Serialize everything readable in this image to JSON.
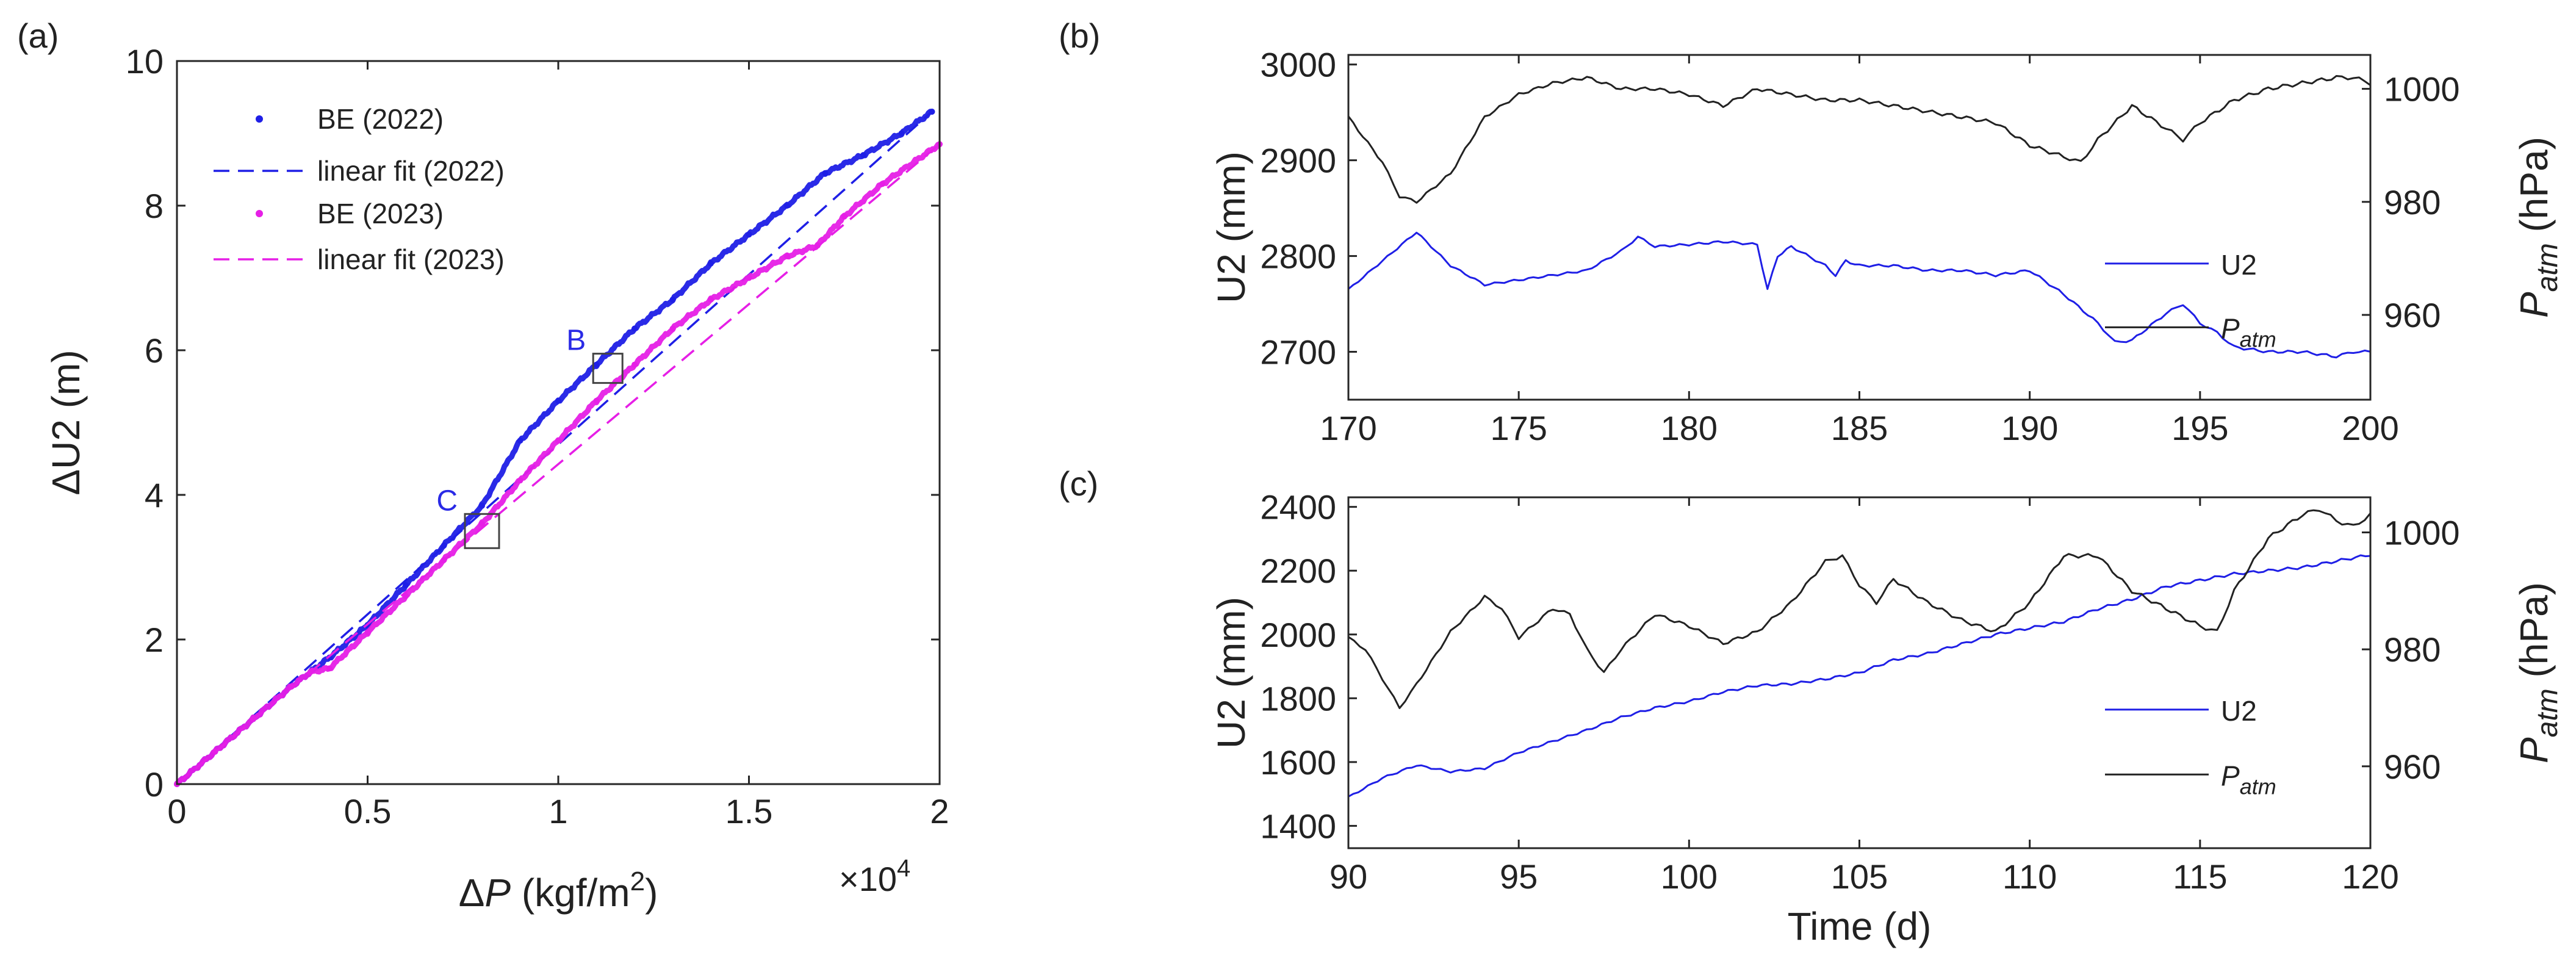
{
  "chart_data": [
    {
      "panel": "(a)",
      "type": "scatter",
      "xlabel_sym": "ΔP",
      "xlabel_unit": "(kgf/m",
      "xlabel_sup": "2",
      "xlabel_close": ")",
      "ylabel": "ΔU2 (m)",
      "xlim": [
        0,
        20000
      ],
      "ylim": [
        0,
        10
      ],
      "xticks": [
        0,
        5000,
        10000,
        15000,
        20000
      ],
      "xtick_labels": [
        "0",
        "0.5",
        "1",
        "1.5",
        "2"
      ],
      "yticks": [
        0,
        2,
        4,
        6,
        8,
        10
      ],
      "ytick_labels": [
        "0",
        "2",
        "4",
        "6",
        "8",
        "10"
      ],
      "exponent_label": "×10",
      "exponent_sup": "4",
      "legend_position": "top-left",
      "series": [
        {
          "name": "BE (2022)",
          "style": "dots",
          "color": "#1f1fe6",
          "x": [
            0,
            1000,
            2000,
            3000,
            4000,
            5000,
            6000,
            7000,
            8000,
            9000,
            10000,
            11000,
            12000,
            13000,
            14000,
            15000,
            16000,
            17000,
            18000,
            19000,
            19800
          ],
          "y": [
            0,
            0.45,
            0.9,
            1.35,
            1.75,
            2.2,
            2.75,
            3.3,
            3.85,
            4.75,
            5.3,
            5.8,
            6.3,
            6.7,
            7.2,
            7.6,
            8.0,
            8.45,
            8.7,
            9.0,
            9.3
          ]
        },
        {
          "name": "linear fit (2022)",
          "style": "dashed",
          "color": "#1f1fe6",
          "x": [
            0,
            19800
          ],
          "y": [
            0,
            9.3
          ]
        },
        {
          "name": "BE (2023)",
          "style": "dots",
          "color": "#e61fe6",
          "x": [
            0,
            1000,
            2000,
            3000,
            3500,
            4000,
            5000,
            6000,
            7000,
            8000,
            9000,
            10000,
            11000,
            12000,
            13000,
            14000,
            15000,
            16000,
            16800,
            17500,
            18500,
            20000
          ],
          "y": [
            0,
            0.45,
            0.9,
            1.35,
            1.55,
            1.6,
            2.1,
            2.6,
            3.1,
            3.6,
            4.2,
            4.75,
            5.3,
            5.8,
            6.3,
            6.7,
            7.0,
            7.3,
            7.45,
            7.85,
            8.3,
            8.85
          ]
        },
        {
          "name": "linear fit (2023)",
          "style": "dashed",
          "color": "#e61fe6",
          "x": [
            0,
            20000
          ],
          "y": [
            0,
            8.85
          ]
        }
      ],
      "annotations": [
        {
          "label": "B",
          "x": 11300,
          "y": 5.75
        },
        {
          "label": "C",
          "x": 8000,
          "y": 3.5
        }
      ]
    },
    {
      "panel": "(b)",
      "type": "line",
      "xlabel": "",
      "ylabel_left": "U2 (mm)",
      "ylabel_right_sym": "P",
      "ylabel_right_sub": "atm",
      "ylabel_right_unit": "(hPa)",
      "xlim": [
        170,
        200
      ],
      "ylim_left": [
        2650,
        3010
      ],
      "ylim_right": [
        945,
        1006
      ],
      "xticks": [
        170,
        175,
        180,
        185,
        190,
        195,
        200
      ],
      "xtick_labels": [
        "170",
        "175",
        "180",
        "185",
        "190",
        "195",
        "200"
      ],
      "yticks_left": [
        2700,
        2800,
        2900,
        3000
      ],
      "ytick_labels_left": [
        "2700",
        "2800",
        "2900",
        "3000"
      ],
      "yticks_right": [
        960,
        980,
        1000
      ],
      "ytick_labels_right": [
        "960",
        "980",
        "1000"
      ],
      "legend_position": "right",
      "series": [
        {
          "name": "U2",
          "axis": "left",
          "color": "#1f1fe6",
          "x": [
            170,
            171,
            172,
            173,
            174,
            175,
            176,
            177,
            178,
            178.5,
            179,
            180,
            181,
            182,
            182.3,
            182.6,
            183,
            184,
            184.3,
            184.6,
            185,
            186,
            187,
            188,
            189,
            190,
            191,
            192,
            192.5,
            193,
            194,
            194.5,
            195,
            195.5,
            196,
            197,
            198,
            199,
            199.5,
            200
          ],
          "y": [
            2765,
            2795,
            2825,
            2790,
            2770,
            2775,
            2780,
            2785,
            2805,
            2820,
            2810,
            2812,
            2815,
            2812,
            2765,
            2800,
            2810,
            2790,
            2780,
            2795,
            2790,
            2790,
            2785,
            2785,
            2780,
            2785,
            2760,
            2730,
            2710,
            2712,
            2740,
            2750,
            2730,
            2720,
            2705,
            2700,
            2700,
            2695,
            2700,
            2700
          ]
        },
        {
          "name": "P",
          "name_sub": "atm",
          "axis": "right",
          "color": "#222222",
          "x": [
            170,
            171,
            171.5,
            172,
            173,
            174,
            175,
            176,
            177,
            178,
            179,
            180,
            181,
            182,
            183,
            184,
            185,
            186,
            187,
            188,
            189,
            190,
            191,
            191.5,
            192,
            193,
            194,
            194.5,
            195,
            196,
            197,
            198,
            199,
            199.5,
            200
          ],
          "y": [
            995,
            987,
            981,
            980,
            985,
            995,
            999,
            1001,
            1002,
            1000,
            1000,
            999,
            997,
            1000,
            999,
            998,
            998,
            997,
            996,
            995,
            994,
            990,
            988,
            987,
            991,
            997,
            993,
            991,
            994,
            998,
            1000,
            1001,
            1002,
            1002,
            1001
          ]
        }
      ]
    },
    {
      "panel": "(c)",
      "type": "line",
      "xlabel": "Time (d)",
      "ylabel_left": "U2 (mm)",
      "ylabel_right_sym": "P",
      "ylabel_right_sub": "atm",
      "ylabel_right_unit": "(hPa)",
      "xlim": [
        90,
        120
      ],
      "ylim_left": [
        1330,
        2430
      ],
      "ylim_right": [
        946,
        1006
      ],
      "xticks": [
        90,
        95,
        100,
        105,
        110,
        115,
        120
      ],
      "xtick_labels": [
        "90",
        "95",
        "100",
        "105",
        "110",
        "115",
        "120"
      ],
      "yticks_left": [
        1400,
        1600,
        1800,
        2000,
        2200,
        2400
      ],
      "ytick_labels_left": [
        "1400",
        "1600",
        "1800",
        "2000",
        "2200",
        "2400"
      ],
      "yticks_right": [
        960,
        980,
        1000
      ],
      "ytick_labels_right": [
        "960",
        "980",
        "1000"
      ],
      "legend_position": "right",
      "series": [
        {
          "name": "U2",
          "axis": "left",
          "color": "#1f1fe6",
          "x": [
            90,
            91,
            92,
            93,
            94,
            95,
            96,
            97,
            98,
            99,
            100,
            101,
            102,
            103,
            104,
            105,
            106,
            107,
            108,
            109,
            110,
            111,
            112,
            113,
            114,
            115,
            116,
            117,
            118,
            119,
            120
          ],
          "y": [
            1490,
            1550,
            1590,
            1570,
            1580,
            1630,
            1665,
            1700,
            1740,
            1770,
            1790,
            1820,
            1840,
            1845,
            1860,
            1880,
            1920,
            1940,
            1970,
            2000,
            2020,
            2040,
            2080,
            2110,
            2150,
            2170,
            2190,
            2200,
            2210,
            2230,
            2250
          ]
        },
        {
          "name": "P",
          "name_sub": "atm",
          "axis": "right",
          "color": "#222222",
          "x": [
            90,
            90.5,
            91,
            91.5,
            92,
            93,
            94,
            94.5,
            95,
            96,
            96.5,
            97,
            97.5,
            98,
            99,
            100,
            101,
            102,
            103,
            104,
            104.5,
            105,
            105.5,
            106,
            107,
            108,
            109,
            110,
            111,
            112,
            113,
            114,
            115,
            115.5,
            116,
            117,
            118,
            118.5,
            119,
            119.5,
            120
          ],
          "y": [
            982,
            980,
            975,
            970,
            974,
            983,
            989,
            987,
            982,
            987,
            986,
            980,
            976,
            980,
            986,
            984,
            981,
            983,
            988,
            995,
            996,
            991,
            988,
            992,
            988,
            985,
            983,
            988,
            996,
            996,
            990,
            987,
            984,
            983,
            990,
            999,
            1003,
            1004,
            1002,
            1001,
            1003
          ]
        }
      ]
    }
  ]
}
